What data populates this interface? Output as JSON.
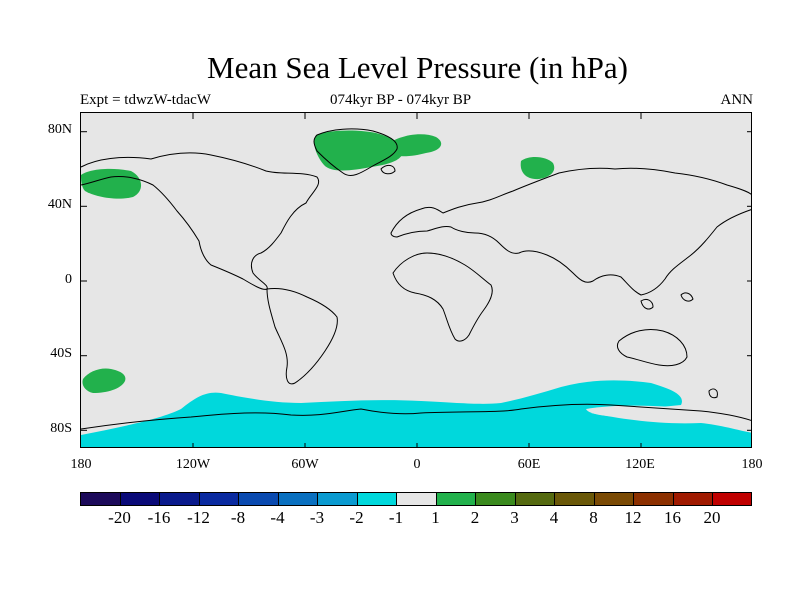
{
  "title": "Mean Sea Level Pressure (in hPa)",
  "subtitle_left": "Expt = tdwzW-tdacW",
  "subtitle_center": "074kyr BP - 074kyr BP",
  "subtitle_right": "ANN",
  "lat_ticks": [
    "80N",
    "40N",
    "0",
    "40S",
    "80S"
  ],
  "lon_ticks": [
    "180",
    "120W",
    "60W",
    "0",
    "60E",
    "120E",
    "180"
  ],
  "map": {
    "background": "#e6e6e6",
    "coast_color": "#000000",
    "anomaly_regions": [
      {
        "region": "Greenland / North Atlantic",
        "class": "1 to 2",
        "color": "#22b14c"
      },
      {
        "region": "North Siberia",
        "class": "1 to 2",
        "color": "#22b14c"
      },
      {
        "region": "North Pacific",
        "class": "1 to 2",
        "color": "#22b14c"
      },
      {
        "region": "South Pacific",
        "class": "1 to 2",
        "color": "#22b14c"
      },
      {
        "region": "Southern Ocean",
        "class": "-2 to -1",
        "color": "#00d8dc"
      }
    ]
  },
  "colorbar": {
    "colors": [
      "#1c0a5a",
      "#0a0a78",
      "#0a1a8c",
      "#0a2aa0",
      "#0a4ab0",
      "#0a70c0",
      "#0a9ad0",
      "#00d8dc",
      "#e6e6e6",
      "#22b14c",
      "#3a8a1e",
      "#556a10",
      "#6a5808",
      "#7a4a04",
      "#8c3000",
      "#a01a00",
      "#c00000"
    ],
    "labels": [
      "-20",
      "-16",
      "-12",
      "-8",
      "-4",
      "-3",
      "-2",
      "-1",
      "1",
      "2",
      "3",
      "4",
      "8",
      "12",
      "16",
      "20"
    ]
  }
}
